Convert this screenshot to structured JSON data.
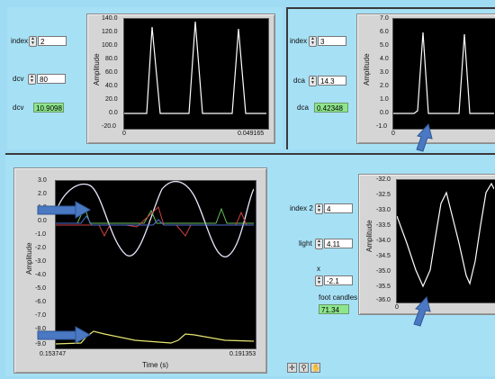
{
  "top_left": {
    "index": {
      "label": "index",
      "value": "2"
    },
    "dcv": {
      "label": "dcv",
      "value": "80"
    },
    "dcv_out": {
      "label": "dcv",
      "value": "10.9098"
    },
    "graph": {
      "ylabel": "Amplitude",
      "yticks": [
        "140.0",
        "120.0",
        "100.0",
        "80.0",
        "60.0",
        "40.0",
        "20.0",
        "0.0",
        "-20.0"
      ],
      "xticks": [
        "0",
        "0.049165"
      ]
    }
  },
  "top_right": {
    "index": {
      "label": "index",
      "value": "3"
    },
    "dca": {
      "label": "dca",
      "value": "14.3"
    },
    "dca_out": {
      "label": "dca",
      "value": "0.42348"
    },
    "graph": {
      "ylabel": "Amplitude",
      "yticks": [
        "7.0",
        "6.0",
        "5.0",
        "4.0",
        "3.0",
        "2.0",
        "1.0",
        "0.0",
        "-1.0"
      ],
      "xticks": [
        "0"
      ]
    }
  },
  "bottom_left": {
    "graph": {
      "ylabel": "Amplitude",
      "xlabel": "Time (s)",
      "yticks": [
        "3.0",
        "2.0",
        "1.0",
        "0.0",
        "-1.0",
        "-2.0",
        "-3.0",
        "-4.0",
        "-5.0",
        "-6.0",
        "-7.0",
        "-8.0",
        "-9.0"
      ],
      "xticks": [
        "0.153747",
        "0.191353"
      ]
    }
  },
  "bottom_right": {
    "index2": {
      "label": "index 2",
      "value": "4"
    },
    "light": {
      "label": "light",
      "value": "4.11"
    },
    "x": {
      "label": "x",
      "value": "-2.1"
    },
    "foot_candles": {
      "label": "foot candles",
      "value": "71.34"
    },
    "graph": {
      "ylabel": "Amplitude",
      "yticks": [
        "-32.0",
        "-32.5",
        "-33.0",
        "-33.5",
        "-34.0",
        "-34.5",
        "-35.0",
        "-35.5",
        "-36.0"
      ],
      "xticks": [
        "0"
      ]
    }
  },
  "toolbar": {
    "icons": [
      "cursor-cross-icon",
      "zoom-icon",
      "pan-hand-icon"
    ]
  },
  "annotation_colors": {
    "arrow": "#4a78c2",
    "trace": "#ffffff",
    "indicator": "#8ee68c"
  }
}
